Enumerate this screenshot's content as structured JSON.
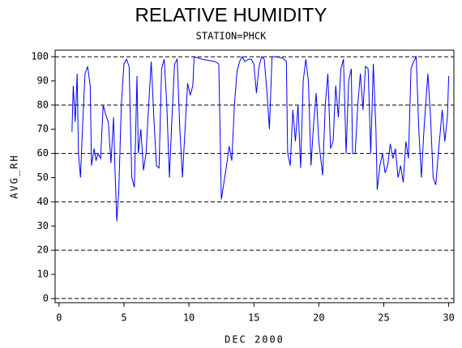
{
  "chart_data": {
    "type": "line",
    "title": "RELATIVE HUMIDITY",
    "subtitle": "STATION=PHCK",
    "x_label": "DEC 2000",
    "y_label": "AVG_RH",
    "xlim": [
      -0.3,
      30.4
    ],
    "ylim": [
      -1.7,
      102.7
    ],
    "xticks": [
      0,
      5,
      10,
      15,
      20,
      25,
      30
    ],
    "yticks": [
      0,
      10,
      20,
      30,
      40,
      50,
      60,
      70,
      80,
      90,
      100
    ],
    "grid_lines": [
      0,
      20,
      40,
      60,
      80,
      100
    ],
    "x": [
      1.0,
      1.1,
      1.25,
      1.4,
      1.5,
      1.65,
      1.8,
      2.0,
      2.2,
      2.4,
      2.5,
      2.7,
      2.85,
      3.0,
      3.2,
      3.4,
      3.6,
      3.8,
      4.0,
      4.2,
      4.3,
      4.45,
      4.6,
      4.8,
      5.0,
      5.2,
      5.4,
      5.6,
      5.8,
      6.0,
      6.1,
      6.3,
      6.5,
      6.7,
      6.9,
      7.1,
      7.3,
      7.5,
      7.7,
      7.9,
      8.1,
      8.3,
      8.5,
      8.7,
      8.9,
      9.1,
      9.3,
      9.5,
      9.7,
      9.9,
      10.1,
      10.3,
      10.4,
      11.0,
      11.5,
      12.0,
      12.3,
      12.5,
      12.7,
      12.9,
      13.1,
      13.3,
      13.5,
      13.7,
      13.9,
      14.1,
      14.3,
      14.6,
      14.8,
      15.0,
      15.2,
      15.4,
      15.6,
      15.8,
      16.0,
      16.2,
      16.4,
      16.7,
      17.2,
      17.5,
      17.6,
      17.8,
      18.0,
      18.2,
      18.4,
      18.6,
      18.8,
      19.0,
      19.2,
      19.4,
      19.6,
      19.8,
      20.0,
      20.3,
      20.5,
      20.7,
      20.9,
      21.1,
      21.3,
      21.5,
      21.7,
      21.9,
      22.1,
      22.3,
      22.5,
      22.6,
      22.8,
      23.0,
      23.2,
      23.4,
      23.6,
      23.8,
      24.0,
      24.2,
      24.4,
      24.5,
      24.7,
      24.9,
      25.1,
      25.3,
      25.5,
      25.7,
      25.9,
      26.1,
      26.3,
      26.5,
      26.7,
      26.9,
      27.1,
      27.3,
      27.5,
      27.7,
      27.9,
      28.1,
      28.4,
      28.6,
      28.8,
      29.0,
      29.2,
      29.5,
      29.7,
      29.9,
      30.0
    ],
    "series": [
      {
        "name": "AVG_RH",
        "color": "#0000ff",
        "values": [
          69,
          88,
          73,
          93,
          60,
          50,
          70,
          93,
          96,
          88,
          55,
          62,
          57,
          60,
          58,
          80,
          76,
          73,
          56,
          75,
          55,
          32,
          44,
          80,
          97,
          99,
          96,
          50,
          46,
          92,
          60,
          70,
          53,
          60,
          80,
          98,
          75,
          55,
          54,
          95,
          99,
          80,
          50,
          75,
          97,
          99,
          70,
          50,
          70,
          89,
          84,
          88,
          100,
          99,
          98.5,
          98,
          97,
          41,
          48,
          55,
          63,
          57,
          80,
          94,
          98,
          100,
          98,
          99,
          99,
          97,
          85,
          96,
          100,
          99,
          86,
          70,
          100,
          100,
          99.5,
          98,
          60,
          55,
          78,
          65,
          80,
          54,
          90,
          99,
          90,
          55,
          72,
          85,
          65,
          51,
          80,
          93,
          62,
          65,
          88,
          75,
          95,
          99,
          60,
          90,
          95,
          60,
          60,
          80,
          93,
          78,
          96,
          95,
          60,
          97,
          70,
          45,
          55,
          60,
          52,
          55,
          64,
          58,
          62,
          50,
          55,
          48,
          65,
          58,
          95,
          98,
          100,
          70,
          50,
          70,
          93,
          75,
          50,
          47,
          60,
          78,
          65,
          75,
          92
        ]
      }
    ]
  }
}
